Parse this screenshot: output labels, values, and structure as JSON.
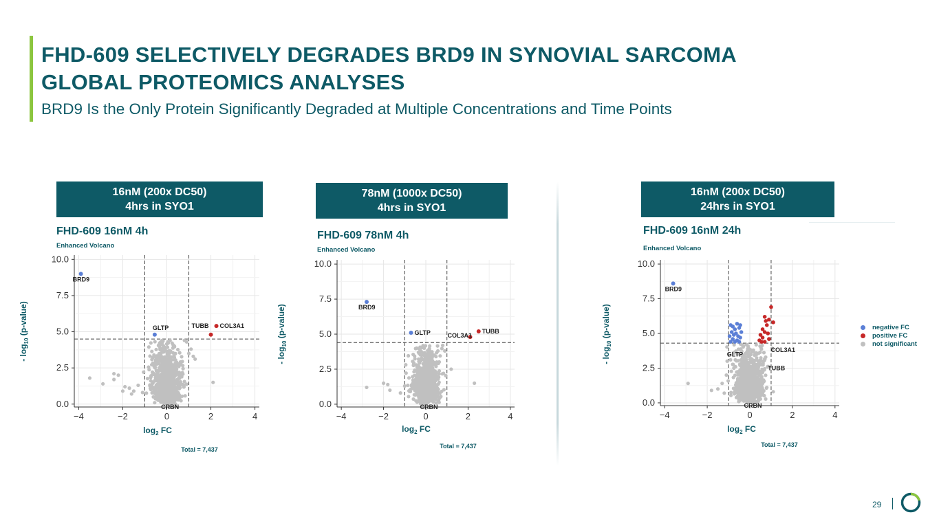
{
  "header": {
    "title_line1": "FHD-609 SELECTIVELY DEGRADES BRD9 IN SYNOVIAL SARCOMA",
    "title_line2": "GLOBAL PROTEOMICS ANALYSES",
    "subtitle": "BRD9 Is the Only Protein Significantly Degraded at Multiple Concentrations and Time Points"
  },
  "banners": [
    {
      "line1": "16nM (200x DC50)",
      "line2": "4hrs in SYO1"
    },
    {
      "line1": "78nM (1000x DC50)",
      "line2": "4hrs in SYO1"
    },
    {
      "line1": "16nM (200x DC50)",
      "line2": "24hrs in SYO1"
    }
  ],
  "colors": {
    "brand": "#0e5a66",
    "accent": "#8cc63f",
    "negative_fc": "#5b7fd6",
    "positive_fc": "#c62828",
    "not_significant": "#c0c0c0"
  },
  "legend": {
    "items": [
      {
        "label": "negative FC",
        "color": "#5b7fd6"
      },
      {
        "label": "positive FC",
        "color": "#c62828"
      },
      {
        "label": "not significant",
        "color": "#c0c0c0"
      }
    ],
    "placement": "right of third plot"
  },
  "footer": {
    "page_number": "29"
  },
  "chart_data": [
    {
      "type": "scatter",
      "title": "FHD-609 16nM 4h",
      "subtitle": "Enhanced Volcano",
      "xlabel": "log2 FC",
      "ylabel": "- log10 (p-value)",
      "caption": "Total = 7,437",
      "xlim": [
        -4.2,
        4.2
      ],
      "ylim": [
        -0.2,
        10.3
      ],
      "xticks": [
        -4,
        -2,
        0,
        2,
        4
      ],
      "xtick_labels": [
        "−4",
        "−2",
        "0",
        "2",
        "4"
      ],
      "yticks": [
        0,
        2.5,
        5,
        7.5,
        10
      ],
      "ytick_labels": [
        "0.0",
        "2.5",
        "5.0",
        "7.5",
        "10.0"
      ],
      "fc_cutoff": [
        -1,
        1
      ],
      "p_cutoff": 4.5,
      "grid": true,
      "labeled_points": [
        {
          "label": "BRD9",
          "x": -3.9,
          "y": 9.0,
          "group": "negative FC"
        },
        {
          "label": "GLTP",
          "x": -0.55,
          "y": 4.8,
          "group": "negative FC"
        },
        {
          "label": "TUBB",
          "x": 2.0,
          "y": 4.8,
          "group": "positive FC"
        },
        {
          "label": "COL3A1",
          "x": 2.25,
          "y": 5.4,
          "group": "positive FC"
        },
        {
          "label": "CRBN",
          "x": 0.05,
          "y": 0.3,
          "group": "not significant"
        }
      ],
      "background_points": [
        {
          "x": -3.5,
          "y": 1.8
        },
        {
          "x": -2.9,
          "y": 1.4
        },
        {
          "x": -2.4,
          "y": 2.1
        },
        {
          "x": -2.2,
          "y": 2.0
        },
        {
          "x": -2.4,
          "y": 1.7
        },
        {
          "x": -1.9,
          "y": 1.2
        },
        {
          "x": -1.7,
          "y": 1.1
        },
        {
          "x": -1.5,
          "y": 0.9
        },
        {
          "x": -1.3,
          "y": 1.3
        },
        {
          "x": -1.1,
          "y": 0.8
        },
        {
          "x": -1.6,
          "y": 0.7
        },
        {
          "x": -2.0,
          "y": 0.9
        },
        {
          "x": 1.1,
          "y": 3.8
        },
        {
          "x": 1.2,
          "y": 3.3
        },
        {
          "x": 1.0,
          "y": 3.5
        },
        {
          "x": 2.1,
          "y": 1.5
        },
        {
          "x": 0.9,
          "y": 4.3
        },
        {
          "x": 0.8,
          "y": 4.4
        }
      ],
      "volcano_spread": {
        "x_sd": 0.3,
        "y_max": 4.4
      }
    },
    {
      "type": "scatter",
      "title": "FHD-609 78nM 4h",
      "subtitle": "Enhanced Volcano",
      "xlabel": "log2 FC",
      "ylabel": "- log10 (p-value)",
      "caption": "Total = 7,437",
      "xlim": [
        -4.2,
        4.2
      ],
      "ylim": [
        -0.2,
        10.3
      ],
      "xticks": [
        -4,
        -2,
        0,
        2,
        4
      ],
      "xtick_labels": [
        "−4",
        "−2",
        "0",
        "2",
        "4"
      ],
      "yticks": [
        0,
        2.5,
        5,
        7.5,
        10
      ],
      "ytick_labels": [
        "0.0",
        "2.5",
        "5.0",
        "7.5",
        "10.0"
      ],
      "fc_cutoff": [
        -1,
        1
      ],
      "p_cutoff": 4.4,
      "grid": true,
      "labeled_points": [
        {
          "label": "BRD9",
          "x": -2.8,
          "y": 7.3,
          "group": "negative FC"
        },
        {
          "label": "GLTP",
          "x": -0.7,
          "y": 5.1,
          "group": "negative FC"
        },
        {
          "label": "COL3A1",
          "x": 2.1,
          "y": 4.8,
          "group": "positive FC"
        },
        {
          "label": "TUBB",
          "x": 2.5,
          "y": 5.2,
          "group": "positive FC"
        },
        {
          "label": "CRBN",
          "x": 0.05,
          "y": 0.3,
          "group": "not significant"
        }
      ],
      "background_points": [
        {
          "x": -2.8,
          "y": 1.2
        },
        {
          "x": -2.0,
          "y": 1.5
        },
        {
          "x": -1.8,
          "y": 1.4
        },
        {
          "x": -1.7,
          "y": 1.0
        },
        {
          "x": -1.2,
          "y": 0.8
        },
        {
          "x": -1.0,
          "y": 1.3
        },
        {
          "x": 1.2,
          "y": 2.5
        },
        {
          "x": 2.3,
          "y": 1.5
        },
        {
          "x": 0.9,
          "y": 3.8
        },
        {
          "x": 0.8,
          "y": 4.2
        }
      ],
      "volcano_spread": {
        "x_sd": 0.28,
        "y_max": 4.2
      }
    },
    {
      "type": "scatter",
      "title": "FHD-609 16nM 24h",
      "subtitle": "Enhanced Volcano",
      "xlabel": "log2 FC",
      "ylabel": "- log10 (p-value)",
      "caption": "Total = 7,437",
      "xlim": [
        -4.2,
        4.2
      ],
      "ylim": [
        -0.2,
        10.3
      ],
      "xticks": [
        -4,
        -2,
        0,
        2,
        4
      ],
      "xtick_labels": [
        "−4",
        "−2",
        "0",
        "2",
        "4"
      ],
      "yticks": [
        0,
        2.5,
        5,
        7.5,
        10
      ],
      "ytick_labels": [
        "0.0",
        "2.5",
        "5.0",
        "7.5",
        "10.0"
      ],
      "fc_cutoff": [
        -1,
        1
      ],
      "p_cutoff": 4.3,
      "grid": true,
      "labeled_points": [
        {
          "label": "BRD9",
          "x": -3.6,
          "y": 8.6,
          "group": "negative FC"
        },
        {
          "label": "GLTP",
          "x": -0.75,
          "y": 3.6,
          "group": "not significant"
        },
        {
          "label": "COL3A1",
          "x": 1.05,
          "y": 3.9,
          "group": "not significant"
        },
        {
          "label": "TUBB",
          "x": 0.85,
          "y": 2.6,
          "group": "not significant"
        },
        {
          "label": "CRBN",
          "x": 0.05,
          "y": 0.1,
          "group": "not significant"
        }
      ],
      "negative_points": [
        {
          "x": -0.9,
          "y": 5.6
        },
        {
          "x": -0.8,
          "y": 5.5
        },
        {
          "x": -0.7,
          "y": 5.3
        },
        {
          "x": -0.6,
          "y": 5.7
        },
        {
          "x": -0.5,
          "y": 5.4
        },
        {
          "x": -0.85,
          "y": 5.1
        },
        {
          "x": -0.75,
          "y": 4.9
        },
        {
          "x": -0.65,
          "y": 5.0
        },
        {
          "x": -0.55,
          "y": 4.8
        },
        {
          "x": -0.45,
          "y": 4.7
        },
        {
          "x": -0.95,
          "y": 4.8
        },
        {
          "x": -0.8,
          "y": 4.6
        },
        {
          "x": -0.6,
          "y": 4.5
        },
        {
          "x": -0.5,
          "y": 4.4
        },
        {
          "x": -0.7,
          "y": 4.4
        },
        {
          "x": -0.4,
          "y": 5.1
        },
        {
          "x": -0.45,
          "y": 5.6
        },
        {
          "x": -0.9,
          "y": 4.4
        }
      ],
      "positive_points": [
        {
          "x": 1.0,
          "y": 6.9
        },
        {
          "x": 0.7,
          "y": 6.2
        },
        {
          "x": 0.75,
          "y": 5.9
        },
        {
          "x": 0.9,
          "y": 6.0
        },
        {
          "x": 1.1,
          "y": 5.8
        },
        {
          "x": 0.8,
          "y": 5.6
        },
        {
          "x": 0.6,
          "y": 5.3
        },
        {
          "x": 0.7,
          "y": 5.1
        },
        {
          "x": 0.85,
          "y": 5.0
        },
        {
          "x": 0.5,
          "y": 4.9
        },
        {
          "x": 0.6,
          "y": 4.7
        },
        {
          "x": 0.45,
          "y": 4.5
        },
        {
          "x": 0.55,
          "y": 4.4
        },
        {
          "x": 0.9,
          "y": 4.6
        },
        {
          "x": 0.7,
          "y": 4.4
        }
      ],
      "background_points": [
        {
          "x": -2.9,
          "y": 1.4
        },
        {
          "x": -1.8,
          "y": 0.9
        },
        {
          "x": -1.5,
          "y": 1.0
        },
        {
          "x": -1.3,
          "y": 1.4
        },
        {
          "x": -1.2,
          "y": 0.7
        },
        {
          "x": 1.1,
          "y": 0.8
        },
        {
          "x": -1.1,
          "y": 2.0
        }
      ],
      "volcano_spread": {
        "x_sd": 0.32,
        "y_max": 4.3
      }
    }
  ]
}
